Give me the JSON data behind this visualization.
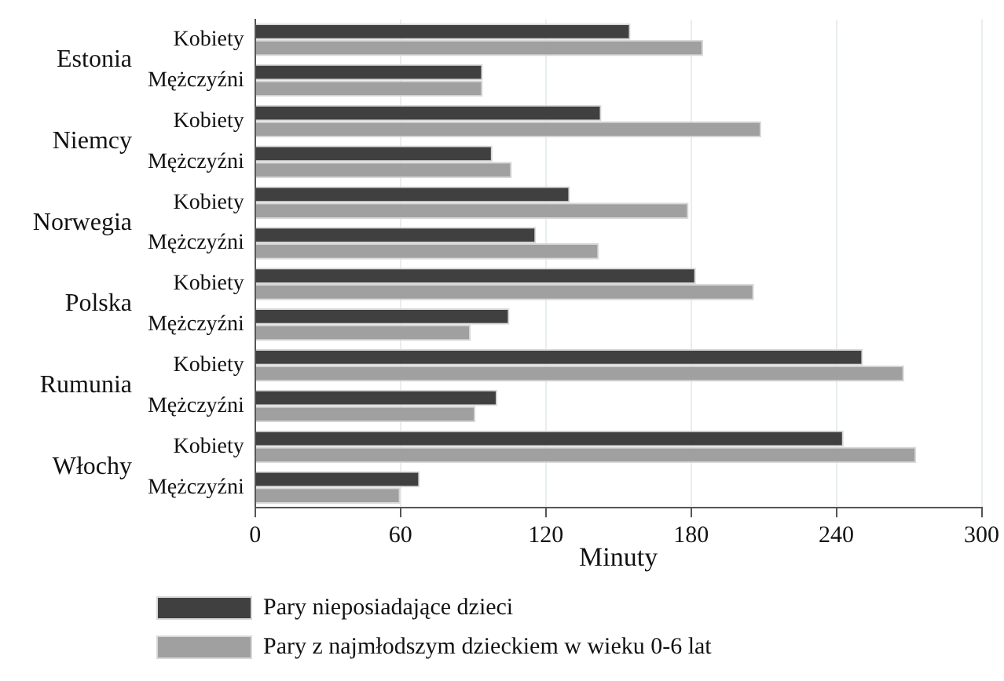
{
  "chart_data": {
    "type": "bar",
    "orientation": "horizontal",
    "xlabel": "Minuty",
    "categories": [
      "Kobiety",
      "Mężczyźni",
      "Kobiety",
      "Mężczyźni",
      "Kobiety",
      "Mężczyźni",
      "Kobiety",
      "Mężczyźni",
      "Kobiety",
      "Mężczyźni",
      "Kobiety",
      "Mężczyźni"
    ],
    "annotations": [
      "Estonia",
      "Niemcy",
      "Norwegia",
      "Polska",
      "Rumunia",
      "Włochy"
    ],
    "series": [
      {
        "name": "Pary nieposiadające dzieci",
        "color": "#404040",
        "values": [
          155,
          94,
          143,
          98,
          130,
          116,
          182,
          105,
          251,
          100,
          243,
          68
        ]
      },
      {
        "name": "Pary z najmłodszym dzieckiem w wieku 0-6 lat",
        "color": "#a0a0a0",
        "values": [
          185,
          94,
          209,
          106,
          179,
          142,
          206,
          89,
          268,
          91,
          273,
          60
        ]
      }
    ],
    "xlim": [
      0,
      300
    ],
    "xticks": [
      0,
      60,
      120,
      180,
      240,
      300
    ],
    "grid": "x",
    "legend": "bottom"
  }
}
